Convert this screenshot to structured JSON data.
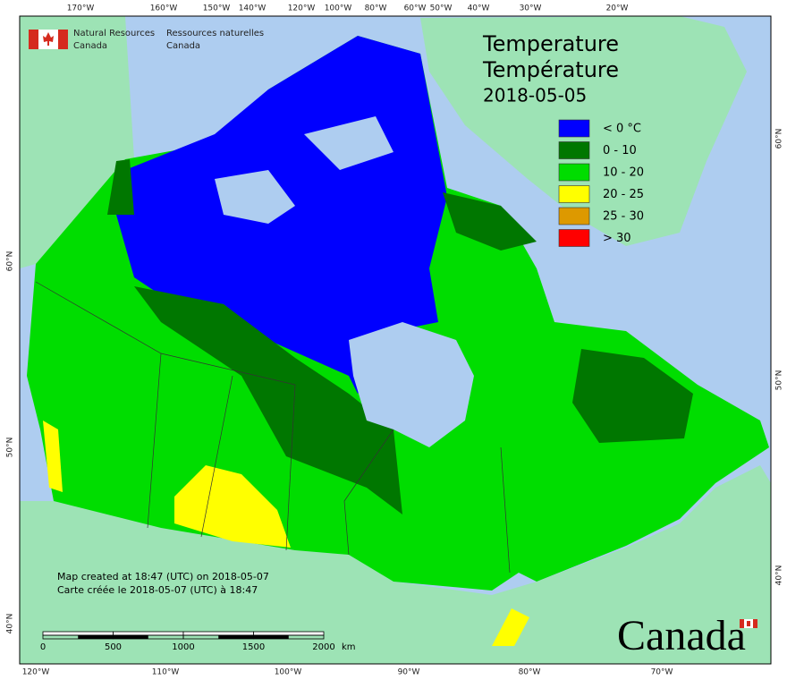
{
  "header": {
    "dept_en": [
      "Natural Resources",
      "Canada"
    ],
    "dept_fr": [
      "Ressources naturelles",
      "Canada"
    ]
  },
  "title": {
    "en": "Temperature",
    "fr": "Température",
    "date": "2018-05-05"
  },
  "legend": [
    {
      "label": "< 0 °C",
      "color": "#0000ff"
    },
    {
      "label": "0 - 10",
      "color": "#007700"
    },
    {
      "label": "10 - 20",
      "color": "#00dd00"
    },
    {
      "label": "20 - 25",
      "color": "#ffff00"
    },
    {
      "label": "25 - 30",
      "color": "#dd9900"
    },
    {
      "label": "> 30",
      "color": "#ff0000"
    }
  ],
  "graticule": {
    "top": [
      "170°W",
      "160°W",
      "150°W",
      "140°W",
      "120°W",
      "100°W",
      "80°W",
      "60°W",
      "50°W",
      "40°W",
      "30°W",
      "20°W"
    ],
    "bottom": [
      "120°W",
      "110°W",
      "100°W",
      "90°W",
      "80°W",
      "70°W"
    ],
    "left": [
      "60°N",
      "50°N",
      "40°N"
    ],
    "right": [
      "60°N",
      "50°N",
      "40°N"
    ]
  },
  "notes": [
    "Map created at 18:47 (UTC) on 2018-05-07",
    "Carte créée le 2018-05-07 (UTC) à 18:47"
  ],
  "scale_bar": {
    "labels": [
      0,
      500,
      1000,
      1500,
      2000
    ],
    "unit": "km"
  },
  "wordmark": "Canada"
}
